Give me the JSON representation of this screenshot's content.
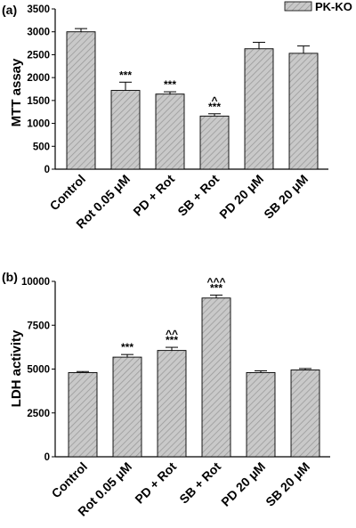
{
  "legend": {
    "label": "PK-KO",
    "position": "top-right"
  },
  "chart_data": [
    {
      "panel_label": "(a)",
      "type": "bar",
      "ylabel": "MTT assay",
      "ylim": [
        0,
        3500
      ],
      "yticks": [
        0,
        500,
        1000,
        1500,
        2000,
        2500,
        3000,
        3500
      ],
      "grid": false,
      "categories": [
        "Control",
        "Rot 0.05 μM",
        "PD + Rot",
        "SB + Rot",
        "PD 20 μM",
        "SB 20 μM"
      ],
      "series": [
        {
          "name": "PK-KO",
          "values": [
            3000,
            1720,
            1640,
            1160,
            2630,
            2530
          ],
          "errors": [
            70,
            180,
            50,
            50,
            140,
            160
          ]
        }
      ],
      "annotations": [
        {
          "category": "Rot 0.05 μM",
          "lines": [
            "***"
          ]
        },
        {
          "category": "PD + Rot",
          "lines": [
            "***"
          ]
        },
        {
          "category": "SB + Rot",
          "lines": [
            "^",
            "***"
          ]
        }
      ]
    },
    {
      "panel_label": "(b)",
      "type": "bar",
      "ylabel": "LDH activity",
      "ylim": [
        0,
        10000
      ],
      "yticks": [
        0,
        2500,
        5000,
        7500,
        10000
      ],
      "grid": false,
      "categories": [
        "Control",
        "Rot 0.05 μM",
        "PD + Rot",
        "SB + Rot",
        "PD 20 μM",
        "SB 20 μM"
      ],
      "series": [
        {
          "name": "PK-KO",
          "values": [
            4800,
            5680,
            6060,
            9050,
            4800,
            4950
          ],
          "errors": [
            60,
            150,
            180,
            170,
            100,
            80
          ]
        }
      ],
      "annotations": [
        {
          "category": "Rot 0.05 μM",
          "lines": [
            "***"
          ]
        },
        {
          "category": "PD + Rot",
          "lines": [
            "^^",
            "***"
          ]
        },
        {
          "category": "SB + Rot",
          "lines": [
            "^^^",
            "***"
          ]
        }
      ]
    }
  ],
  "colors": {
    "bar_fill": "#c9c9c9",
    "hatch": "#9a9a9a",
    "outline": "#000000"
  }
}
